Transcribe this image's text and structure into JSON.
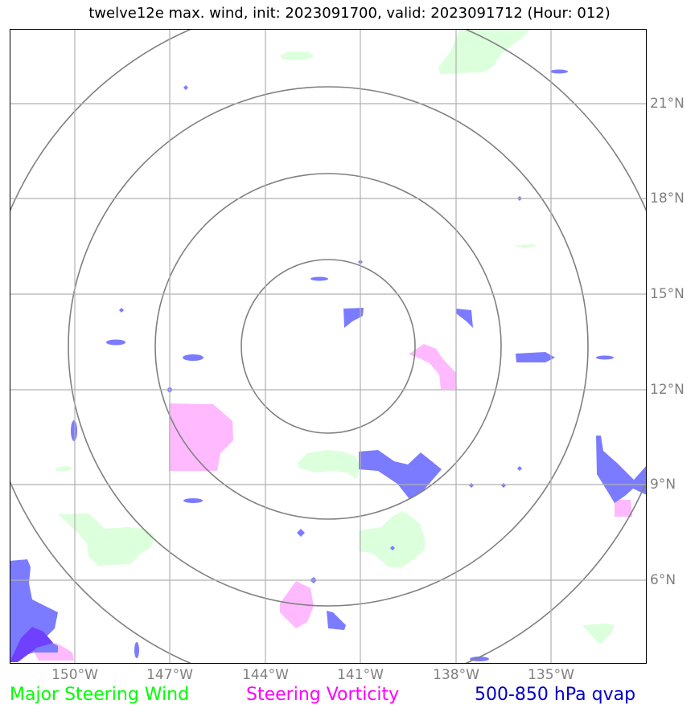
{
  "title": "twelve12e max. wind, init: 2023091700, valid: 2023091712 (Hour: 012)",
  "map": {
    "lon_range": [
      -151.7,
      -132.3
    ],
    "lat_range": [
      3.0,
      23.0
    ],
    "center": {
      "lon": -142.0,
      "lat": 13.4
    },
    "range_rings": 4,
    "lon_ticks": [
      {
        "value": -150,
        "label": "150°W"
      },
      {
        "value": -147,
        "label": "147°W"
      },
      {
        "value": -144,
        "label": "144°W"
      },
      {
        "value": -141,
        "label": "141°W"
      },
      {
        "value": -138,
        "label": "138°W"
      },
      {
        "value": -135,
        "label": "135°W"
      }
    ],
    "lat_ticks": [
      {
        "value": 21,
        "label": "21°N"
      },
      {
        "value": 18,
        "label": "18°N"
      },
      {
        "value": 15,
        "label": "15°N"
      },
      {
        "value": 12,
        "label": "12°N"
      },
      {
        "value": 9,
        "label": "9°N"
      },
      {
        "value": 6,
        "label": "6°N"
      }
    ]
  },
  "legend": {
    "wind": {
      "label": "Major Steering Wind",
      "color": "#00ff00"
    },
    "vorticity": {
      "label": "Steering Vorticity",
      "color": "#ff00ff"
    },
    "qvap": {
      "label": "500-850 hPa qvap",
      "color": "#0000cc"
    }
  },
  "fill_colors": {
    "wind": "#dcffdc",
    "vorticity": "#ffb9ff",
    "qvap": "#7b7bff",
    "qvap_dark": "#7040ff"
  }
}
